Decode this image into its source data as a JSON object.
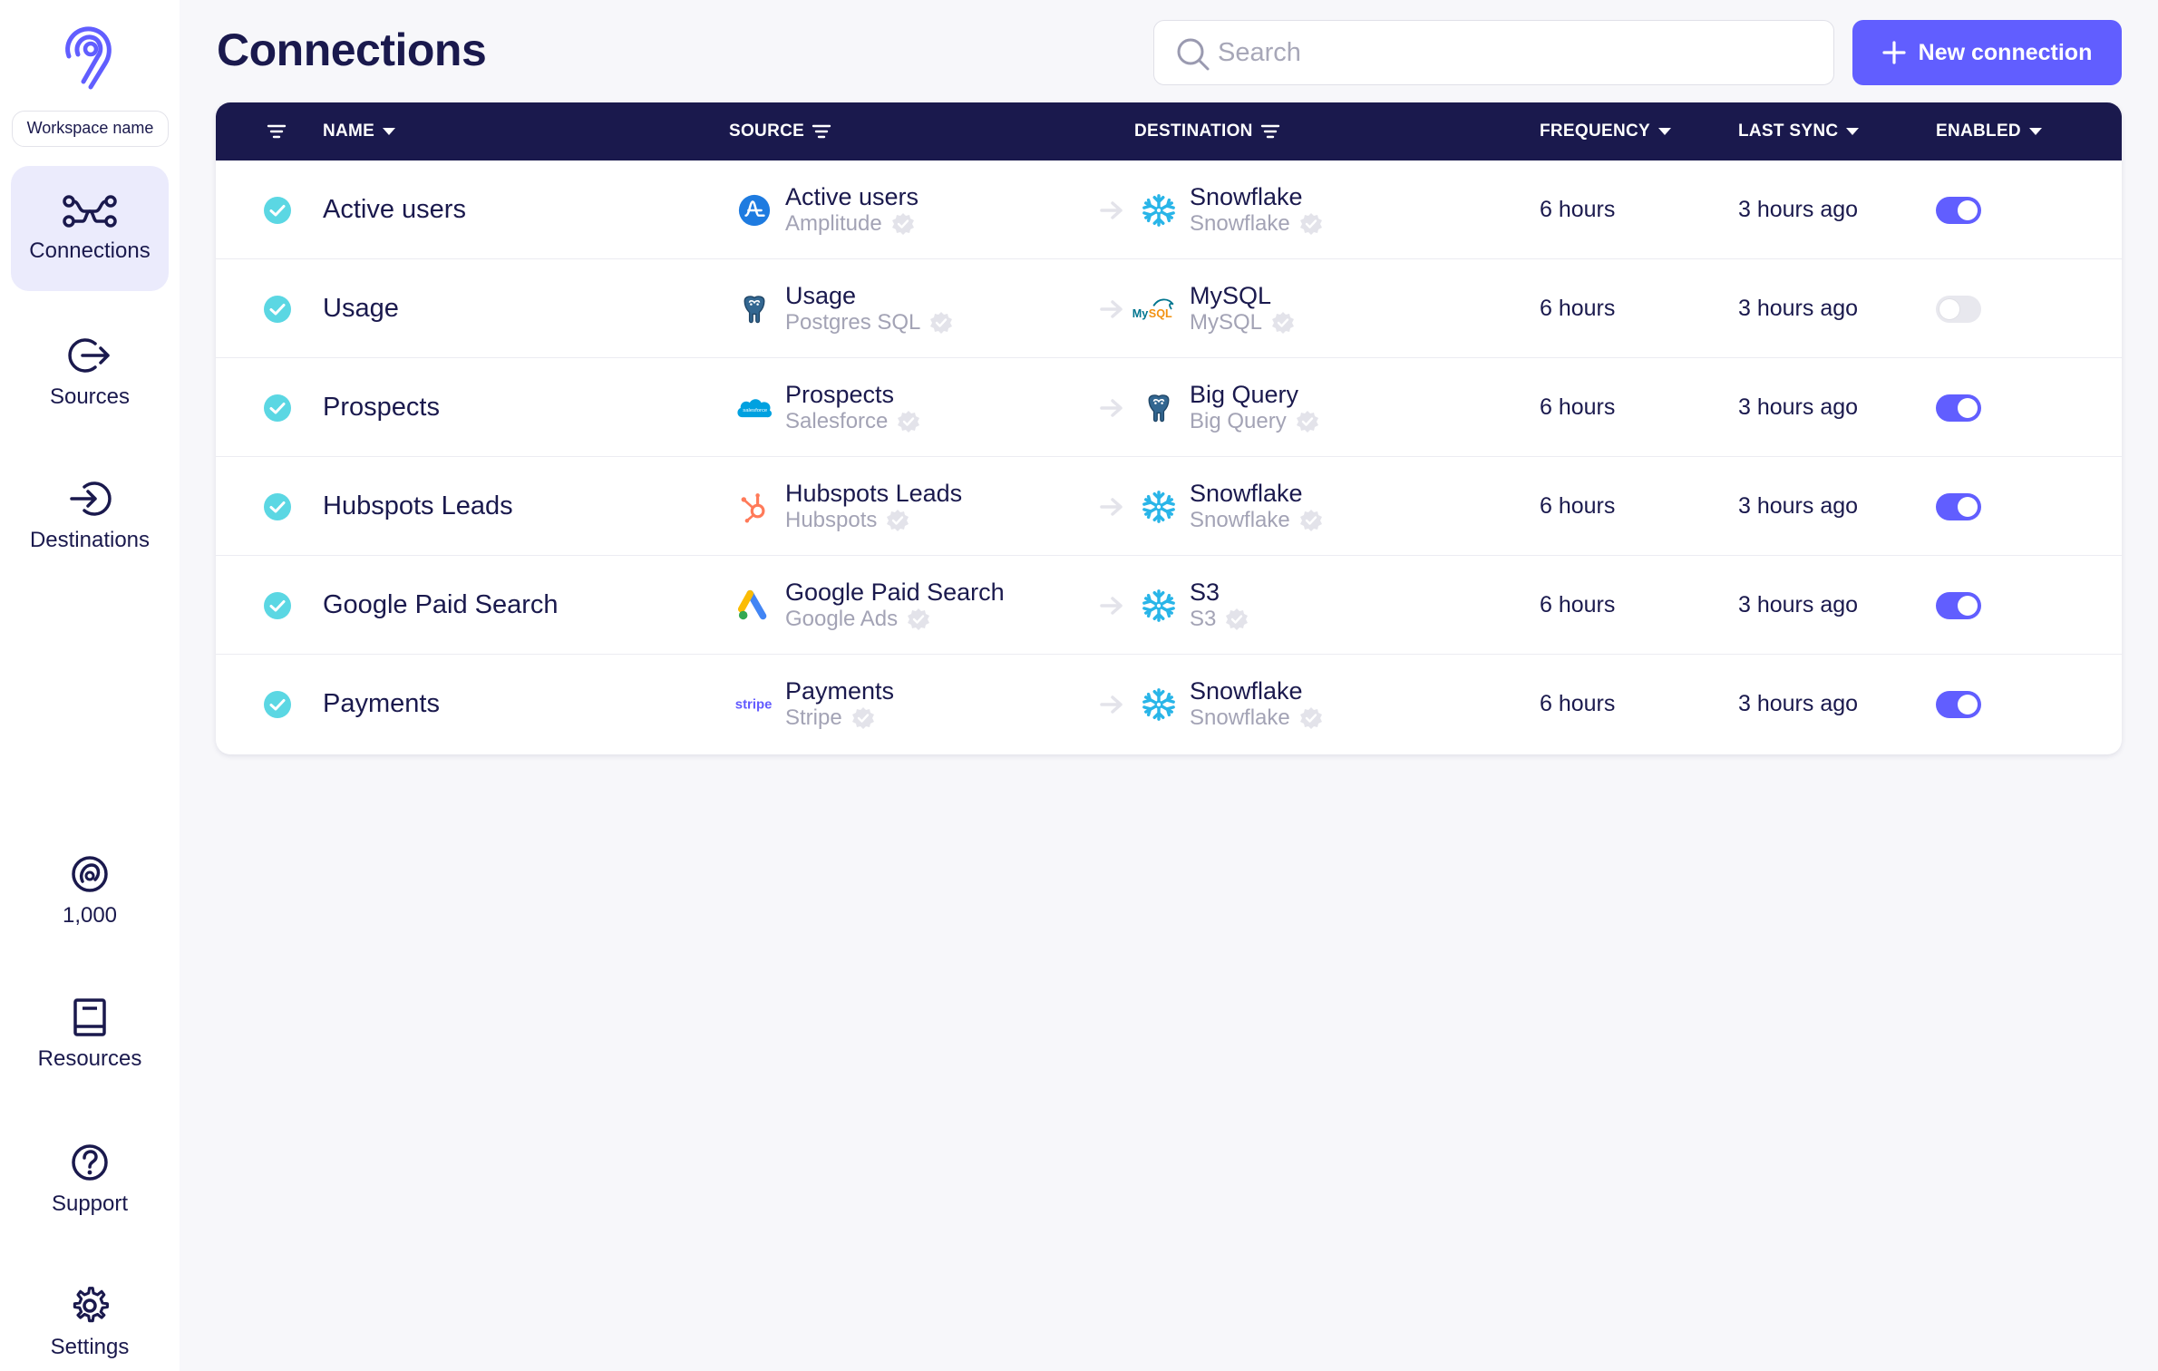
{
  "sidebar": {
    "workspace": "Workspace name",
    "nav": [
      {
        "label": "Connections",
        "icon": "connections-icon",
        "active": true
      },
      {
        "label": "Sources",
        "icon": "sources-icon"
      },
      {
        "label": "Destinations",
        "icon": "destinations-icon"
      },
      {
        "label": "1,000",
        "icon": "credits-icon"
      },
      {
        "label": "Resources",
        "icon": "book-icon"
      },
      {
        "label": "Support",
        "icon": "help-icon"
      },
      {
        "label": "Settings",
        "icon": "gear-icon"
      }
    ]
  },
  "header": {
    "title": "Connections",
    "search_placeholder": "Search",
    "new_button": "New connection"
  },
  "table": {
    "columns": {
      "name": "NAME",
      "source": "SOURCE",
      "destination": "DESTINATION",
      "frequency": "FREQUENCY",
      "last_sync": "LAST SYNC",
      "enabled": "ENABLED"
    },
    "rows": [
      {
        "name": "Active users",
        "source_name": "Active users",
        "source_type": "Amplitude",
        "source_icon": "amplitude",
        "dest_name": "Snowflake",
        "dest_type": "Snowflake",
        "dest_icon": "snowflake",
        "frequency": "6 hours",
        "last_sync": "3 hours ago",
        "enabled": true
      },
      {
        "name": "Usage",
        "source_name": "Usage",
        "source_type": "Postgres SQL",
        "source_icon": "postgres",
        "dest_name": "MySQL",
        "dest_type": "MySQL",
        "dest_icon": "mysql",
        "frequency": "6 hours",
        "last_sync": "3 hours ago",
        "enabled": false
      },
      {
        "name": "Prospects",
        "source_name": "Prospects",
        "source_type": "Salesforce",
        "source_icon": "salesforce",
        "dest_name": "Big Query",
        "dest_type": "Big Query",
        "dest_icon": "postgres",
        "frequency": "6 hours",
        "last_sync": "3 hours ago",
        "enabled": true
      },
      {
        "name": "Hubspots Leads",
        "source_name": "Hubspots Leads",
        "source_type": "Hubspots",
        "source_icon": "hubspot",
        "dest_name": "Snowflake",
        "dest_type": "Snowflake",
        "dest_icon": "snowflake",
        "frequency": "6 hours",
        "last_sync": "3 hours ago",
        "enabled": true
      },
      {
        "name": "Google Paid Search",
        "source_name": "Google Paid Search",
        "source_type": "Google Ads",
        "source_icon": "googleads",
        "dest_name": "S3",
        "dest_type": "S3",
        "dest_icon": "snowflake",
        "frequency": "6 hours",
        "last_sync": "3 hours ago",
        "enabled": true
      },
      {
        "name": "Payments",
        "source_name": "Payments",
        "source_type": "Stripe",
        "source_icon": "stripe",
        "dest_name": "Snowflake",
        "dest_type": "Snowflake",
        "dest_icon": "snowflake",
        "frequency": "6 hours",
        "last_sync": "3 hours ago",
        "enabled": true
      }
    ]
  },
  "colors": {
    "accent": "#615eff",
    "navy": "#1a194d",
    "status_teal": "#5bd7e3"
  }
}
